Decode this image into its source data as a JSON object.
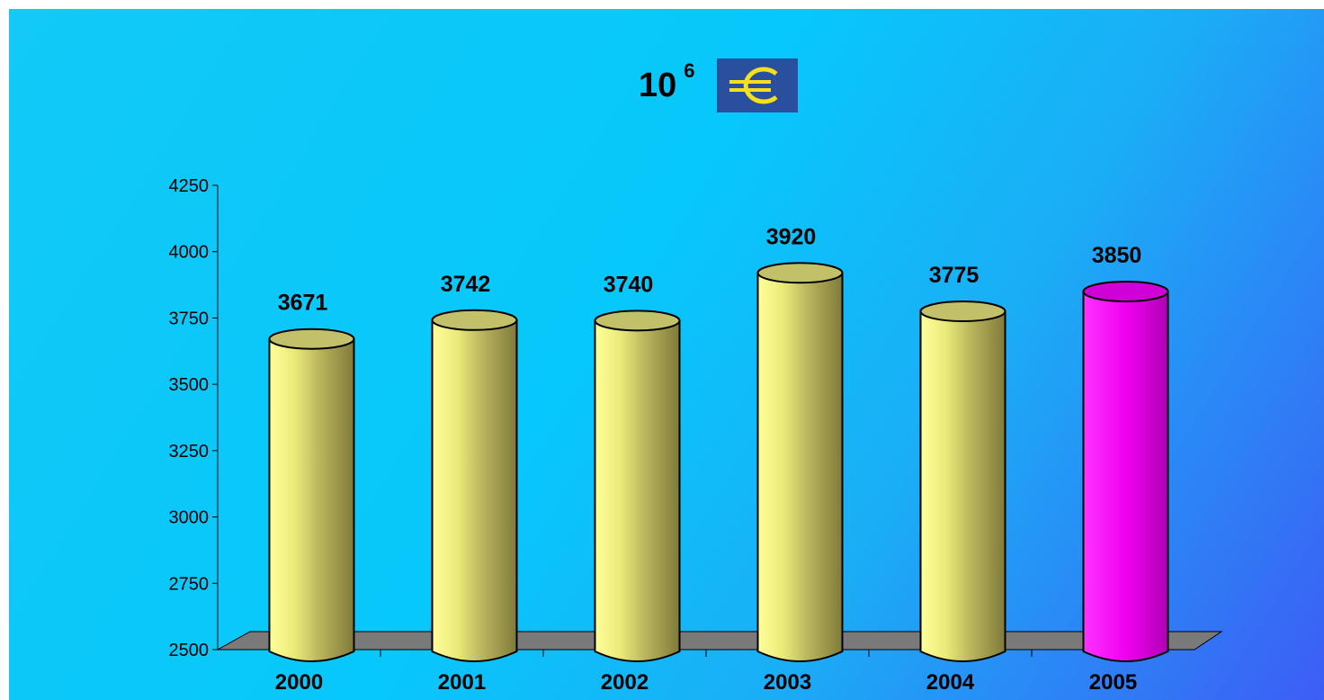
{
  "title": {
    "base": "10",
    "exponent": "6",
    "symbol": "euro-icon"
  },
  "chart_data": {
    "type": "bar",
    "categories": [
      "2000",
      "2001",
      "2002",
      "2003",
      "2004",
      "2005"
    ],
    "values": [
      3671,
      3742,
      3740,
      3920,
      3775,
      3850
    ],
    "data_labels": [
      "3671",
      "3742",
      "3740",
      "3920",
      "3775",
      "3850"
    ],
    "ylim": [
      2500,
      4250
    ],
    "yticks": [
      2500,
      2750,
      3000,
      3250,
      3500,
      3750,
      4000,
      4250
    ],
    "ytick_labels": [
      "2500",
      "2750",
      "3000",
      "3250",
      "3500",
      "3750",
      "4000",
      "4250"
    ],
    "xlabel": "",
    "ylabel": "",
    "grid": false,
    "legend": "none",
    "colors": {
      "default": "#f2f07a",
      "highlight": "#ff00ff"
    },
    "highlight_index": 5
  }
}
